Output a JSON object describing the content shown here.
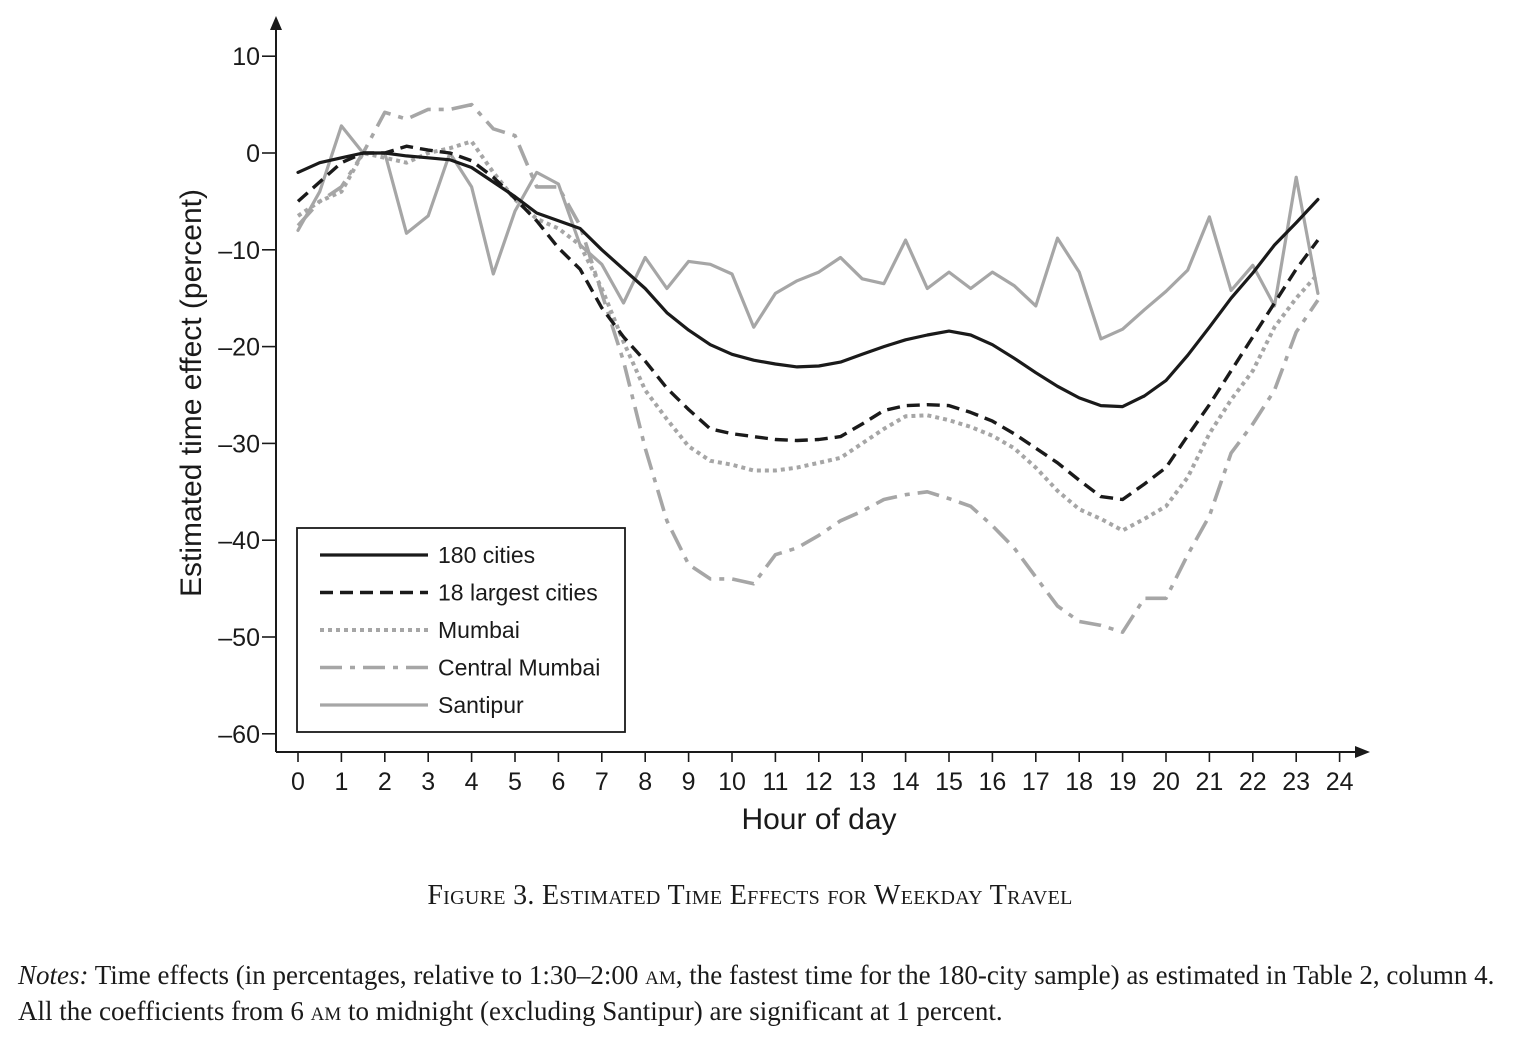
{
  "figure": {
    "caption": "Figure 3. Estimated Time Effects for Weekday Travel",
    "notes_label": "Notes:",
    "notes_part1": " Time effects (in percentages, relative to 1:30–2:00 ",
    "notes_am1": "am",
    "notes_part2": ", the fastest time for the 180-city sample) as estimated in Table 2, column 4. All the coefficients from 6 ",
    "notes_am2": "am",
    "notes_part3": " to midnight (excluding Santipur) are significant at 1 percent."
  },
  "chart_data": {
    "type": "line",
    "title": "",
    "xlabel": "Hour of day",
    "ylabel": "Estimated time effect (percent)",
    "xlim": [
      -0.5,
      24.5
    ],
    "ylim": [
      -62,
      13
    ],
    "xticks": [
      0,
      1,
      2,
      3,
      4,
      5,
      6,
      7,
      8,
      9,
      10,
      11,
      12,
      13,
      14,
      15,
      16,
      17,
      18,
      19,
      20,
      21,
      22,
      23,
      24
    ],
    "yticks": [
      10,
      0,
      -10,
      -20,
      -30,
      -40,
      -50,
      -60
    ],
    "ytick_labels": [
      "10",
      "0",
      "–10",
      "–20",
      "–30",
      "–40",
      "–50",
      "–60"
    ],
    "legend_position": "bottom-left",
    "grid": false,
    "x": [
      0,
      0.5,
      1,
      1.5,
      2,
      2.5,
      3,
      3.5,
      4,
      4.5,
      5,
      5.5,
      6,
      6.5,
      7,
      7.5,
      8,
      8.5,
      9,
      9.5,
      10,
      10.5,
      11,
      11.5,
      12,
      12.5,
      13,
      13.5,
      14,
      14.5,
      15,
      15.5,
      16,
      16.5,
      17,
      17.5,
      18,
      18.5,
      19,
      19.5,
      20,
      20.5,
      21,
      21.5,
      22,
      22.5,
      23,
      23.5
    ],
    "series": [
      {
        "name": "180 cities",
        "color": "#1a1a1a",
        "dash": "solid",
        "values": [
          -2,
          -1,
          -0.5,
          0,
          0,
          -0.3,
          -0.5,
          -0.7,
          -1.5,
          -3,
          -4.5,
          -6.2,
          -7,
          -7.8,
          -10,
          -12,
          -14,
          -16.5,
          -18.3,
          -19.8,
          -20.8,
          -21.4,
          -21.8,
          -22.1,
          -22,
          -21.6,
          -20.8,
          -20,
          -19.3,
          -18.8,
          -18.4,
          -18.8,
          -19.8,
          -21.2,
          -22.7,
          -24.1,
          -25.3,
          -26.1,
          -26.2,
          -25.1,
          -23.5,
          -20.9,
          -18,
          -15,
          -12.4,
          -9.5,
          -7.2,
          -4.8
        ]
      },
      {
        "name": "18 largest cities",
        "color": "#1a1a1a",
        "dash": "dashed",
        "values": [
          -5,
          -3,
          -1,
          0,
          0,
          0.7,
          0.3,
          0,
          -0.8,
          -2.5,
          -4.7,
          -7,
          -9.8,
          -12,
          -16,
          -19,
          -21.5,
          -24.3,
          -26.5,
          -28.5,
          -29,
          -29.3,
          -29.6,
          -29.7,
          -29.6,
          -29.3,
          -28,
          -26.6,
          -26.1,
          -26,
          -26.1,
          -26.8,
          -27.7,
          -29,
          -30.5,
          -32,
          -33.8,
          -35.5,
          -35.8,
          -34.2,
          -32.5,
          -29.2,
          -26,
          -22.5,
          -19,
          -15.5,
          -12,
          -9
        ]
      },
      {
        "name": "Mumbai",
        "color": "#a6a6a6",
        "dash": "dotted",
        "values": [
          -6.5,
          -5,
          -4,
          0,
          -0.5,
          -1,
          0,
          0.5,
          1.2,
          -2,
          -4.8,
          -6.8,
          -7.8,
          -9.5,
          -14,
          -19.5,
          -24.5,
          -27.5,
          -30.3,
          -31.8,
          -32.2,
          -32.8,
          -32.8,
          -32.5,
          -32,
          -31.5,
          -30,
          -28.5,
          -27.2,
          -27.1,
          -27.6,
          -28.3,
          -29.2,
          -30.5,
          -32.5,
          -34.9,
          -36.8,
          -37.8,
          -39,
          -37.8,
          -36.5,
          -33.5,
          -29,
          -25.5,
          -22.5,
          -18,
          -15,
          -12.5
        ]
      },
      {
        "name": "Central Mumbai",
        "color": "#a6a6a6",
        "dash": "dashdot",
        "values": [
          -7.5,
          -5,
          -3.5,
          0,
          4.2,
          3.5,
          4.5,
          4.5,
          5,
          2.5,
          1.8,
          -3.5,
          -3.5,
          -7.5,
          -14.5,
          -21.5,
          -30.5,
          -38,
          -42.5,
          -44,
          -44,
          -44.5,
          -41.5,
          -40.8,
          -39.5,
          -38,
          -37,
          -35.8,
          -35.3,
          -35,
          -35.7,
          -36.5,
          -38.5,
          -40.8,
          -43.8,
          -46.8,
          -48.4,
          -48.8,
          -49.5,
          -46,
          -46,
          -41.5,
          -37.5,
          -31,
          -28,
          -24.5,
          -18.5,
          -15.2
        ]
      },
      {
        "name": "Santipur",
        "color": "#a6a6a6",
        "dash": "solid",
        "values": [
          -8,
          -4,
          2.8,
          0,
          0,
          -8.3,
          -6.5,
          0,
          -3.5,
          -12.5,
          -6,
          -2,
          -3.2,
          -9.5,
          -11.5,
          -15.5,
          -10.8,
          -14,
          -11.2,
          -11.5,
          -12.5,
          -18,
          -14.5,
          -13.2,
          -12.3,
          -10.8,
          -13,
          -13.5,
          -9,
          -14,
          -12.3,
          -14,
          -12.3,
          -13.7,
          -15.8,
          -8.8,
          -12.3,
          -19.2,
          -18.2,
          -16.2,
          -14.3,
          -12.1,
          -6.6,
          -14.2,
          -11.6,
          -15.8,
          -2.5,
          -14.5
        ]
      }
    ]
  }
}
